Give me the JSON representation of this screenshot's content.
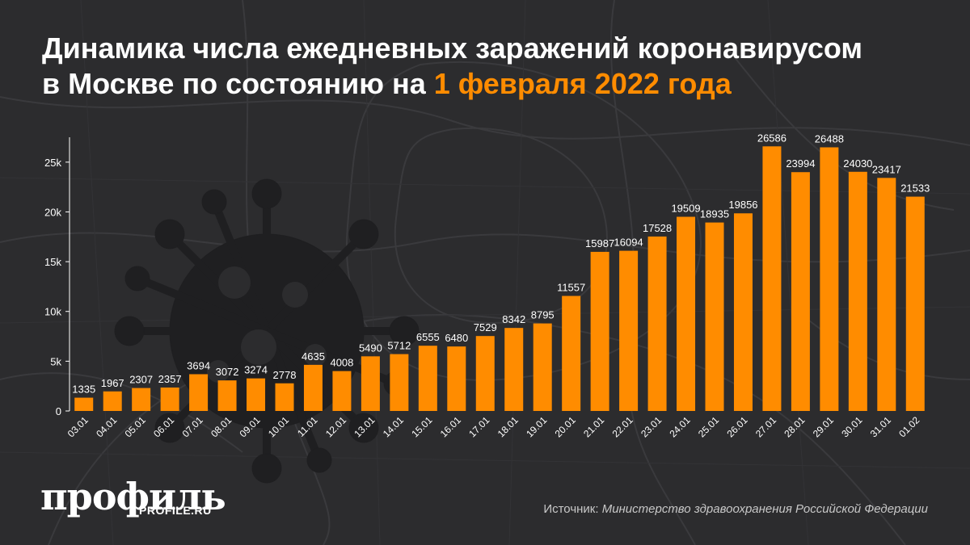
{
  "title": {
    "line1": "Динамика числа ежедневных заражений коронавирусом",
    "line2_prefix": "в Москве по состоянию на ",
    "line2_highlight": "1 февраля 2022 года"
  },
  "colors": {
    "background": "#2c2c2e",
    "bar": "#ff8c00",
    "highlight": "#ff8c00",
    "axis_text": "#ffffff"
  },
  "logo": {
    "main": "профиль",
    "sub": "PROFILE.RU"
  },
  "source": {
    "label": "Источник: ",
    "name": "Министерство здравоохранения Российской Федерации"
  },
  "chart_data": {
    "type": "bar",
    "categories": [
      "03.01",
      "04.01",
      "05.01",
      "06.01",
      "07.01",
      "08.01",
      "09.01",
      "10.01",
      "11.01",
      "12.01",
      "13.01",
      "14.01",
      "15.01",
      "16.01",
      "17.01",
      "18.01",
      "19.01",
      "20.01",
      "21.01",
      "22.01",
      "23.01",
      "24.01",
      "25.01",
      "26.01",
      "27.01",
      "28.01",
      "29.01",
      "30.01",
      "31.01",
      "01.02"
    ],
    "values": [
      1335,
      1967,
      2307,
      2357,
      3694,
      3072,
      3274,
      2778,
      4635,
      4008,
      5490,
      5712,
      6555,
      6480,
      7529,
      8342,
      8795,
      11557,
      15987,
      16094,
      17528,
      19509,
      18935,
      19856,
      26586,
      23994,
      26488,
      24030,
      23417,
      21533
    ],
    "yticks": [
      0,
      5000,
      10000,
      15000,
      20000,
      25000
    ],
    "ytick_labels": [
      "0",
      "5k",
      "10k",
      "15k",
      "20k",
      "25k"
    ],
    "ylim": [
      0,
      27500
    ],
    "grid": false,
    "data_labels": true
  }
}
